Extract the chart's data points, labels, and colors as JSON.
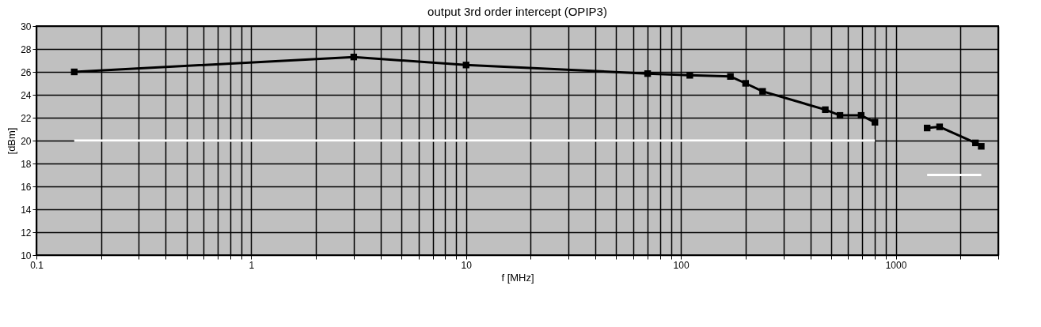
{
  "chart_data": {
    "type": "line",
    "title": "output 3rd order intercept (OPIP3)",
    "xlabel": "f [MHz]",
    "ylabel": "[dBm]",
    "series": [
      {
        "color": "#000000",
        "x": [
          0.15,
          3,
          10,
          70,
          110,
          170,
          200,
          240,
          470,
          550,
          690,
          800
        ],
        "values": [
          26.0,
          27.3,
          26.6,
          25.85,
          25.7,
          25.6,
          25.0,
          24.3,
          22.7,
          22.2,
          22.2,
          21.6
        ]
      },
      {
        "color": "#000000",
        "x": [
          1400,
          1600,
          2350,
          2500
        ],
        "values": [
          21.1,
          21.2,
          19.8,
          19.5
        ]
      },
      {
        "color": "#ffffff",
        "marker": "none",
        "x": [
          0.15,
          800
        ],
        "values": [
          20,
          20
        ]
      },
      {
        "color": "#ffffff",
        "marker": "none",
        "x": [
          1400,
          2500
        ],
        "values": [
          17,
          17
        ]
      }
    ],
    "log": "x",
    "xlim": [
      0.1,
      3000
    ],
    "ylim": [
      10,
      30
    ],
    "xticks": [
      0.1,
      {
        "value": 0.2,
        "label": null
      },
      {
        "value": 0.3,
        "label": null
      },
      {
        "value": 0.4,
        "label": null
      },
      {
        "value": 0.5,
        "label": null
      },
      {
        "value": 0.6,
        "label": null
      },
      {
        "value": 0.7,
        "label": null
      },
      {
        "value": 0.8,
        "label": null
      },
      {
        "value": 0.9,
        "label": null
      },
      1,
      {
        "value": 2,
        "label": null
      },
      {
        "value": 3,
        "label": null
      },
      {
        "value": 4,
        "label": null
      },
      {
        "value": 5,
        "label": null
      },
      {
        "value": 6,
        "label": null
      },
      {
        "value": 7,
        "label": null
      },
      {
        "value": 8,
        "label": null
      },
      {
        "value": 9,
        "label": null
      },
      10,
      {
        "value": 20,
        "label": null
      },
      {
        "value": 30,
        "label": null
      },
      {
        "value": 40,
        "label": null
      },
      {
        "value": 50,
        "label": null
      },
      {
        "value": 60,
        "label": null
      },
      {
        "value": 70,
        "label": null
      },
      {
        "value": 80,
        "label": null
      },
      {
        "value": 90,
        "label": null
      },
      100,
      {
        "value": 200,
        "label": null
      },
      {
        "value": 300,
        "label": null
      },
      {
        "value": 400,
        "label": null
      },
      {
        "value": 500,
        "label": null
      },
      {
        "value": 600,
        "label": null
      },
      {
        "value": 700,
        "label": null
      },
      {
        "value": 800,
        "label": null
      },
      {
        "value": 900,
        "label": null
      },
      1000,
      {
        "value": 2000,
        "label": null
      },
      {
        "value": 3000,
        "label": null
      }
    ],
    "yticks": [
      10,
      12,
      14,
      16,
      18,
      20,
      22,
      24,
      26,
      28,
      30
    ],
    "grid": true,
    "marker": "square",
    "line_style": "solid"
  }
}
